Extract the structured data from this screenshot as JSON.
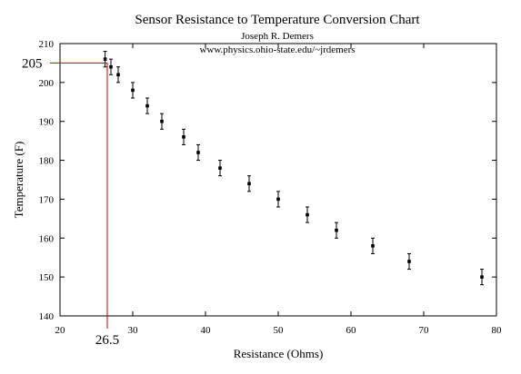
{
  "chart_data": {
    "type": "scatter",
    "title": "Sensor Resistance to Temperature Conversion Chart",
    "subtitle_lines": [
      "Joseph R. Demers",
      "www.physics.ohio-state.edu/~jrdemers"
    ],
    "xlabel": "Resistance (Ohms)",
    "ylabel": "Temperature (F)",
    "xlim": [
      20,
      80
    ],
    "ylim": [
      140,
      210
    ],
    "x_ticks": [
      20,
      30,
      40,
      50,
      60,
      70,
      80
    ],
    "y_ticks": [
      140,
      150,
      160,
      170,
      180,
      190,
      200,
      210
    ],
    "grid": false,
    "x": [
      26.2,
      27.0,
      28.0,
      30.0,
      32.0,
      34.0,
      37.0,
      39.0,
      42.0,
      46.0,
      50.0,
      54.0,
      58.0,
      63.0,
      68.0,
      78.0
    ],
    "y": [
      206,
      204,
      202,
      198,
      194,
      190,
      186,
      182,
      178,
      174,
      170,
      166,
      162,
      158,
      154,
      150
    ],
    "y_error": 2,
    "annotation": {
      "x": 26.5,
      "y": 205,
      "x_text": "26.5",
      "y_text": "205",
      "color": "#cc0000"
    }
  }
}
